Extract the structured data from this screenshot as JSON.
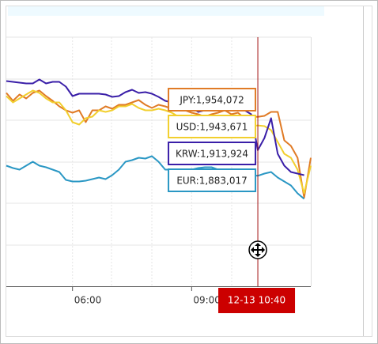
{
  "chart_data": {
    "type": "line",
    "categories": [
      null,
      null,
      null,
      null,
      null,
      null,
      null,
      null,
      null,
      null,
      "06:00",
      null,
      null,
      null,
      null,
      null,
      null,
      null,
      null,
      null,
      null,
      null,
      null,
      null,
      null,
      null,
      null,
      null,
      "09:00",
      null,
      null,
      null,
      null,
      null,
      null,
      null,
      null,
      null,
      null,
      null,
      null,
      null,
      null,
      null,
      null,
      null,
      null
    ],
    "ylim": [
      1750000,
      2050000
    ],
    "crosshair_label": "12-13 10:40",
    "series": [
      {
        "name": "JPY",
        "color": "#e07b26",
        "values": [
          1982824,
          1973304,
          1980920,
          1976160,
          1982824,
          1985680,
          1979016,
          1973304,
          1966640,
          1961880,
          1959024,
          1961880,
          1947600,
          1961880,
          1961880,
          1966640,
          1963784,
          1968544,
          1968544,
          1971400,
          1974256,
          1968544,
          1964736,
          1968544,
          1966640,
          1963784,
          1961880,
          1961880,
          1959024,
          1957120,
          1954264,
          1957120,
          1959024,
          1961880,
          1957120,
          1959024,
          1952360,
          1954264,
          1954072,
          1955216,
          1959976,
          1959976,
          1925704,
          1919040,
          1904760,
          1856800,
          1904760
        ],
        "value_labels": [
          null,
          null,
          null,
          null,
          null,
          null,
          null,
          null,
          null,
          null,
          null,
          null,
          null,
          null,
          null,
          null,
          null,
          null,
          null,
          null,
          null,
          null,
          null,
          null,
          null,
          null,
          null,
          null,
          null,
          null,
          null,
          null,
          null,
          null,
          null,
          null,
          null,
          null,
          "JPY:1,954,072",
          null,
          null,
          null,
          null,
          null,
          null,
          null,
          null
        ]
      },
      {
        "name": "USD",
        "color": "#f2cf2e",
        "values": [
          1979016,
          1971400,
          1976160,
          1980920,
          1985680,
          1982824,
          1976160,
          1971400,
          1971400,
          1961880,
          1947600,
          1944744,
          1952360,
          1954264,
          1961880,
          1959976,
          1961880,
          1966640,
          1966640,
          1969496,
          1964736,
          1961880,
          1961880,
          1963784,
          1961880,
          1959024,
          1954264,
          1954264,
          1952360,
          1952360,
          1947600,
          1950456,
          1952360,
          1952360,
          1950456,
          1952360,
          1944744,
          1942840,
          1943671,
          1942840,
          1938080,
          1923800,
          1909520,
          1904760,
          1890480,
          1861920,
          1895240
        ],
        "value_labels": [
          null,
          null,
          null,
          null,
          null,
          null,
          null,
          null,
          null,
          null,
          null,
          null,
          null,
          null,
          null,
          null,
          null,
          null,
          null,
          null,
          null,
          null,
          null,
          null,
          null,
          null,
          null,
          null,
          null,
          null,
          null,
          null,
          null,
          null,
          null,
          null,
          null,
          null,
          "USD:1,943,671",
          null,
          null,
          null,
          null,
          null,
          null,
          null,
          null
        ]
      },
      {
        "name": "KRW",
        "color": "#3a1fa8",
        "values": [
          1997104,
          1996152,
          1995200,
          1994248,
          1994248,
          1999008,
          1994248,
          1996152,
          1996152,
          1990440,
          1979016,
          1981872,
          1981872,
          1981872,
          1981872,
          1980920,
          1978064,
          1979016,
          1983776,
          1986632,
          1982824,
          1983776,
          1981872,
          1978064,
          1973304,
          1971400,
          1971400,
          1968544,
          1964736,
          1959976,
          1961880,
          1964736,
          1966640,
          1961880,
          1964736,
          1964736,
          1961880,
          1957120,
          1913924,
          1928560,
          1952360,
          1909520,
          1895240,
          1887624,
          1885720,
          1883816,
          null
        ],
        "value_labels": [
          null,
          null,
          null,
          null,
          null,
          null,
          null,
          null,
          null,
          null,
          null,
          null,
          null,
          null,
          null,
          null,
          null,
          null,
          null,
          null,
          null,
          null,
          null,
          null,
          null,
          null,
          null,
          null,
          null,
          null,
          null,
          null,
          null,
          null,
          null,
          null,
          null,
          null,
          "KRW:1,913,924",
          null,
          null,
          null,
          null,
          null,
          null,
          null,
          null
        ]
      },
      {
        "name": "EUR",
        "color": "#2a97c4",
        "values": [
          1895240,
          1892384,
          1890480,
          1895240,
          1900000,
          1895240,
          1893336,
          1890480,
          1887624,
          1878104,
          1876200,
          1876200,
          1877152,
          1879056,
          1880960,
          1879056,
          1883816,
          1890480,
          1900000,
          1901904,
          1904760,
          1903808,
          1906664,
          1900000,
          1890480,
          1890480,
          1890480,
          1890480,
          1890480,
          1892384,
          1893336,
          1893336,
          1890480,
          1887624,
          1887624,
          1887624,
          1883816,
          1883816,
          1883017,
          1885720,
          1887624,
          1880960,
          1876200,
          1871440,
          1861920,
          1855256,
          null
        ],
        "value_labels": [
          null,
          null,
          null,
          null,
          null,
          null,
          null,
          null,
          null,
          null,
          null,
          null,
          null,
          null,
          null,
          null,
          null,
          null,
          null,
          null,
          null,
          null,
          null,
          null,
          null,
          null,
          null,
          null,
          null,
          null,
          null,
          null,
          null,
          null,
          null,
          null,
          null,
          null,
          "EUR:1,883,017",
          null,
          null,
          null,
          null,
          null,
          null,
          null,
          null
        ]
      }
    ]
  }
}
